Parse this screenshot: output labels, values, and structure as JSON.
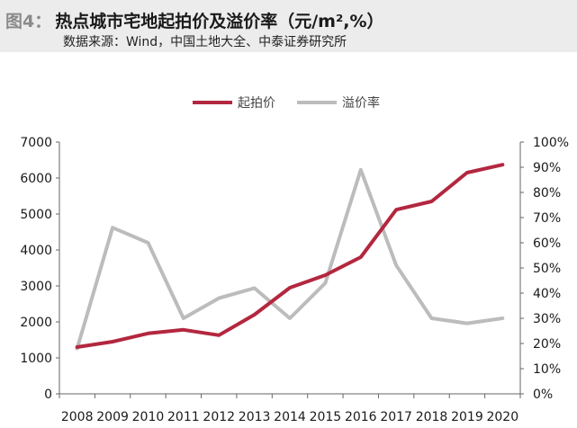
{
  "figure": {
    "label": "图4：",
    "title": "热点城市宅地起拍价及溢价率（元/m²,%）",
    "source": "数据来源：Wind，中国土地大全、中泰证券研究所"
  },
  "colors": {
    "start_price": "#b3273f",
    "premium_rate": "#bcbcbc",
    "header_band": "#ececec"
  },
  "chart_data": {
    "type": "line",
    "x": [
      "2008",
      "2009",
      "2010",
      "2011",
      "2012",
      "2013",
      "2014",
      "2015",
      "2016",
      "2017",
      "2018",
      "2019",
      "2020"
    ],
    "series": [
      {
        "name": "起拍价",
        "axis": "left",
        "values": [
          1300,
          1450,
          1680,
          1780,
          1630,
          2200,
          2950,
          3300,
          3800,
          5120,
          5350,
          6150,
          6370
        ]
      },
      {
        "name": "溢价率",
        "axis": "right",
        "values": [
          18,
          66,
          60,
          30,
          38,
          42,
          30,
          44,
          89,
          51,
          30,
          28,
          30
        ]
      }
    ],
    "y_left": {
      "min": 0,
      "max": 7000,
      "ticks": [
        "0",
        "1000",
        "2000",
        "3000",
        "4000",
        "5000",
        "6000",
        "7000"
      ]
    },
    "y_right": {
      "min": 0,
      "max": 100,
      "ticks": [
        "0%",
        "10%",
        "20%",
        "30%",
        "40%",
        "50%",
        "60%",
        "70%",
        "80%",
        "90%",
        "100%"
      ]
    },
    "grid": false,
    "legend_position": "top"
  }
}
